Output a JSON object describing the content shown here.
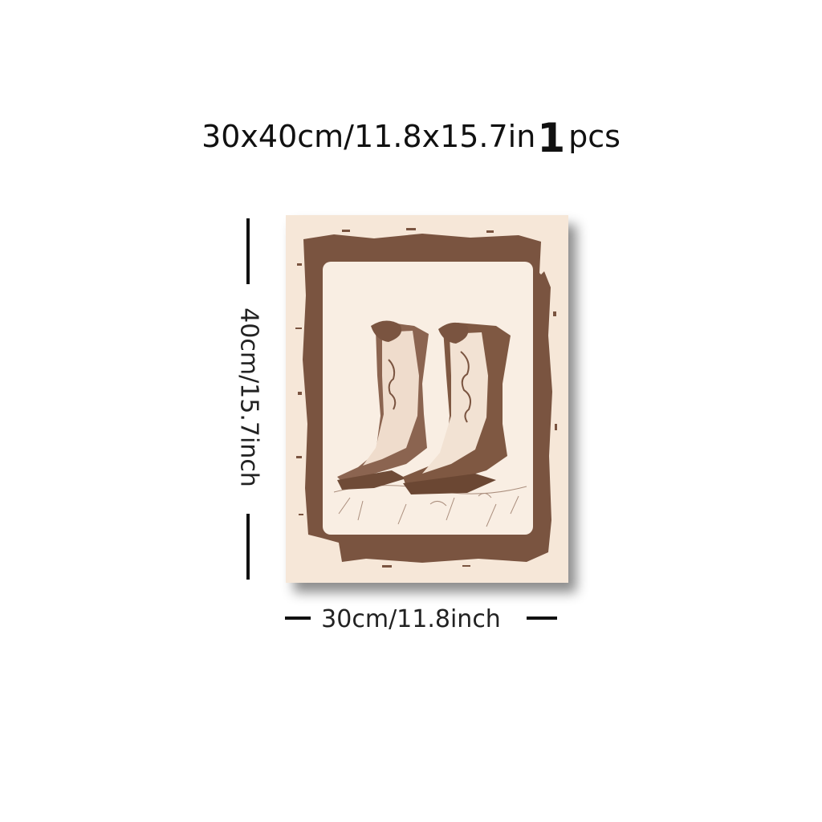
{
  "headline": {
    "size": "30x40cm/11.8x15.7in",
    "quantity": "1",
    "unit": "pcs"
  },
  "dimensions": {
    "height_label": "40cm/15.7inch",
    "width_label": "30cm/11.8inch"
  },
  "poster": {
    "subject": "cowboy-boots-illustration",
    "background_color": "#f6e7d8",
    "ink_color": "#7a5440"
  }
}
